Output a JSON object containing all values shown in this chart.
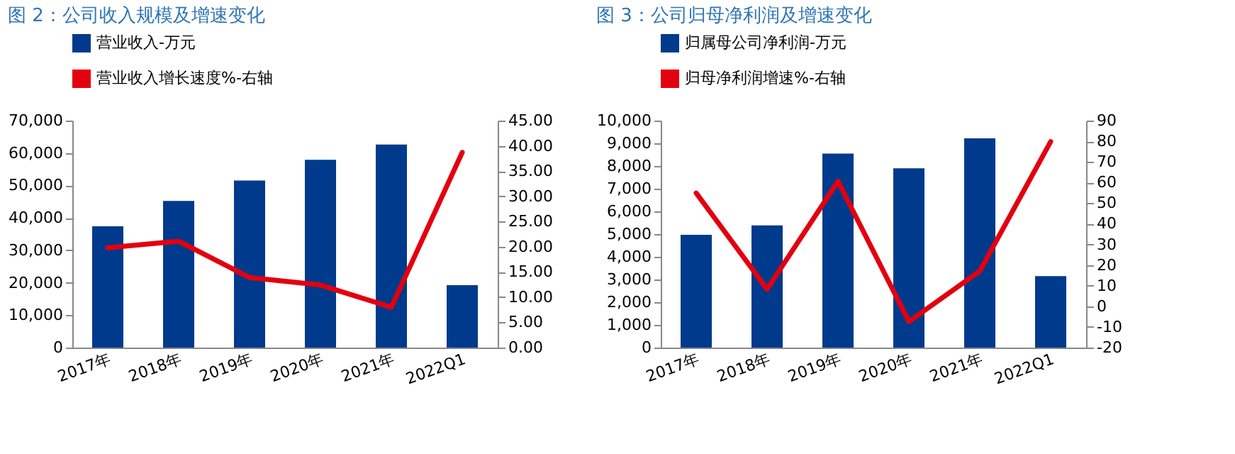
{
  "chart_data": [
    {
      "type": "bar",
      "title": "图 2：公司收入规模及增速变化",
      "categories": [
        "2017年",
        "2018年",
        "2019年",
        "2020年",
        "2021年",
        "2022Q1"
      ],
      "series": [
        {
          "name": "营业收入-万元",
          "color": "#003a8c",
          "values": [
            37400,
            45200,
            51500,
            57900,
            62600,
            19250
          ]
        },
        {
          "name": "营业收入增长速度%-右轴",
          "type": "line",
          "axis": "y2",
          "color": "#e3000f",
          "values": [
            19.8,
            21.1,
            13.9,
            12.4,
            8.0,
            38.7
          ]
        }
      ],
      "ylim": [
        0,
        70000
      ],
      "yticks": [
        0,
        {
          "value": 10000,
          "label": "10,000"
        },
        {
          "value": 20000,
          "label": "20,000"
        },
        {
          "value": 30000,
          "label": "30,000"
        },
        {
          "value": 40000,
          "label": "40,000"
        },
        {
          "value": 50000,
          "label": "50,000"
        },
        {
          "value": 60000,
          "label": "60,000"
        },
        {
          "value": 70000,
          "label": "70,000"
        }
      ],
      "y2lim": [
        0,
        45
      ],
      "y2ticks": [
        {
          "value": 0,
          "label": "0.00"
        },
        {
          "value": 5,
          "label": "5.00"
        },
        {
          "value": 10,
          "label": "10.00"
        },
        {
          "value": 15,
          "label": "15.00"
        },
        {
          "value": 20,
          "label": "20.00"
        },
        {
          "value": 25,
          "label": "25.00"
        },
        {
          "value": 30,
          "label": "30.00"
        },
        {
          "value": 35,
          "label": "35.00"
        },
        {
          "value": 40,
          "label": "40.00"
        },
        {
          "value": 45,
          "label": "45.00"
        }
      ],
      "legend": "top",
      "grid": false
    },
    {
      "type": "bar",
      "title": "图 3：公司归母净利润及增速变化",
      "categories": [
        "2017年",
        "2018年",
        "2019年",
        "2020年",
        "2021年",
        "2022Q1"
      ],
      "series": [
        {
          "name": "归属母公司净利润-万元",
          "color": "#003a8c",
          "values": [
            4970,
            5380,
            8550,
            7900,
            9220,
            3150
          ]
        },
        {
          "name": "归母净利润增速%-右轴",
          "type": "line",
          "axis": "y2",
          "color": "#e3000f",
          "values": [
            54.9,
            8.3,
            60.6,
            -7.4,
            17.1,
            79.8
          ]
        }
      ],
      "ylim": [
        0,
        10000
      ],
      "yticks": [
        0,
        {
          "value": 1000,
          "label": "1,000"
        },
        {
          "value": 2000,
          "label": "2,000"
        },
        {
          "value": 3000,
          "label": "3,000"
        },
        {
          "value": 4000,
          "label": "4,000"
        },
        {
          "value": 5000,
          "label": "5,000"
        },
        {
          "value": 6000,
          "label": "6,000"
        },
        {
          "value": 7000,
          "label": "7,000"
        },
        {
          "value": 8000,
          "label": "8,000"
        },
        {
          "value": 9000,
          "label": "9,000"
        },
        {
          "value": 10000,
          "label": "10,000"
        }
      ],
      "y2lim": [
        -20,
        90
      ],
      "y2ticks": [
        -20,
        -10,
        0,
        10,
        20,
        30,
        40,
        50,
        60,
        70,
        80,
        90
      ],
      "legend": "top",
      "grid": false
    }
  ]
}
